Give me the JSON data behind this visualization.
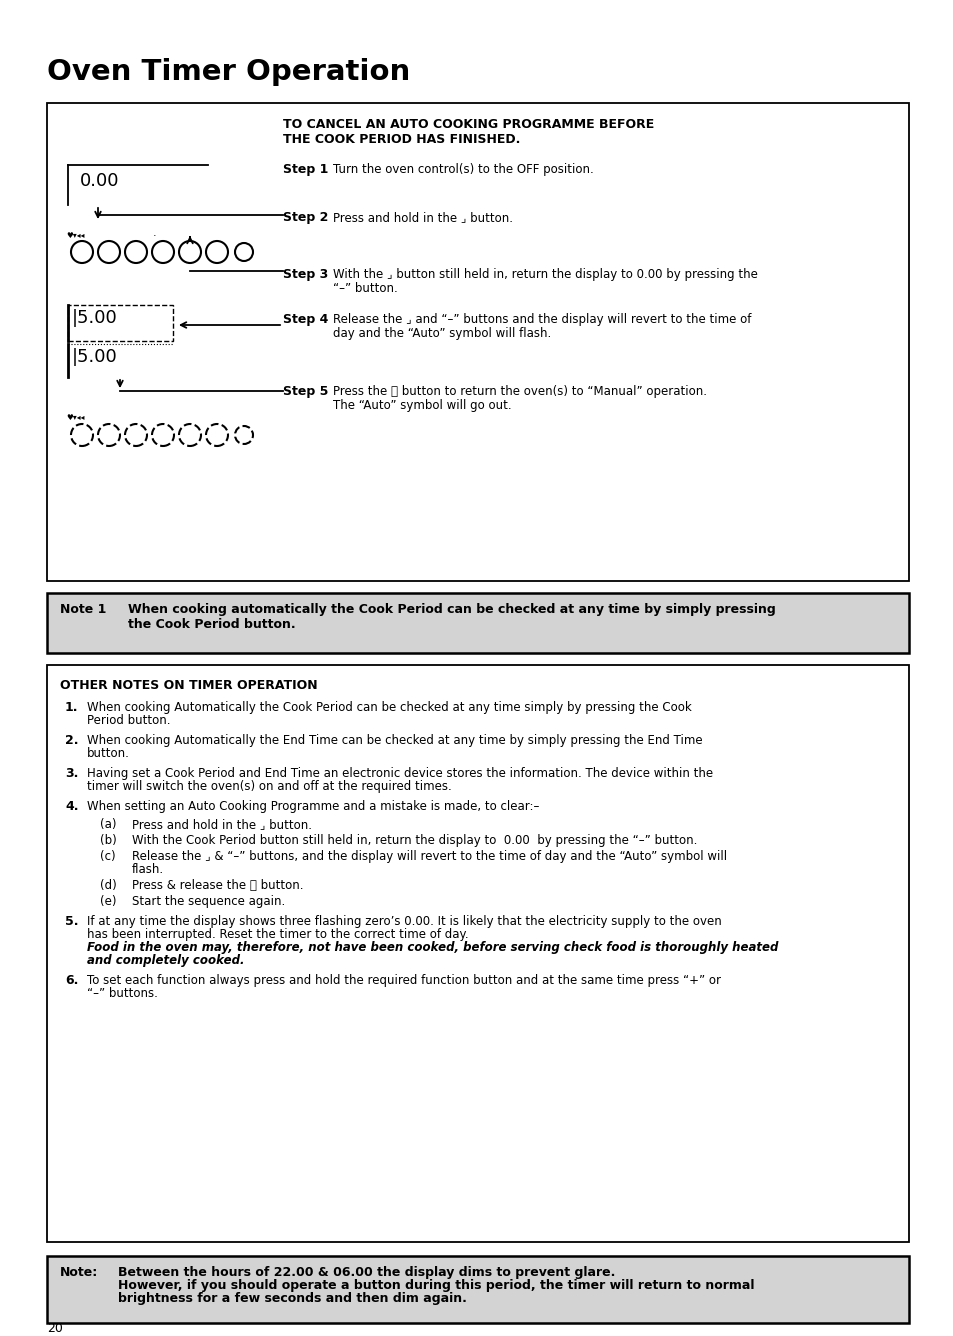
{
  "title": "Oven Timer Operation",
  "page_number": "20",
  "bg": "#ffffff",
  "note1_bg": "#d3d3d3",
  "box1_header": "TO CANCEL AN AUTO COOKING PROGRAMME BEFORE\nTHE COOK PERIOD HAS FINISHED.",
  "step1_text": "Turn the oven control(s) to the OFF position.",
  "step2_text": "Press and hold in the ⌟ button.",
  "step3_line1": "With the ⌟ button still held in, return the display to 0.00 by pressing the",
  "step3_line2": "“–” button.",
  "step4_line1": "Release the ⌟ and “–” buttons and the display will revert to the time of",
  "step4_line2": "day and the “Auto” symbol will flash.",
  "step5_line1": "Press the ⌖ button to return the oven(s) to “Manual” operation.",
  "step5_line2": "The “Auto” symbol will go out.",
  "note1_bold": "Note 1",
  "note1_line1": "When cooking automatically the Cook Period can be checked at any time by simply pressing",
  "note1_line2": "the Cook Period button.",
  "box2_header": "OTHER NOTES ON TIMER OPERATION",
  "item1_line1": "When cooking Automatically the Cook Period can be checked at any time simply by pressing the Cook",
  "item1_line2": "Period button.",
  "item2_line1": "When cooking Automatically the End Time can be checked at any time by simply pressing the End Time",
  "item2_line2": "button.",
  "item3_line1": "Having set a Cook Period and End Time an electronic device stores the information. The device within the",
  "item3_line2": "timer will switch the oven(s) on and off at the required times.",
  "item4_line1": "When setting an Auto Cooking Programme and a mistake is made, to clear:–",
  "suba_text": "Press and hold in the ⌟ button.",
  "subb_line1": "With the Cook Period button still held in, return the display to  0.00  by pressing the “–” button.",
  "subc_line1": "Release the ⌟ & “–” buttons, and the display will revert to the time of day and the “Auto” symbol will",
  "subc_line2": "flash.",
  "subd_text": "Press & release the ⌖ button.",
  "sube_text": "Start the sequence again.",
  "item5_line1": "If at any time the display shows three flashing zero’s 0.00. It is likely that the electricity supply to the oven",
  "item5_line2": "has been interrupted. Reset the timer to the correct time of day.",
  "item5_italic1": "Food in the oven may, therefore, not have been cooked, before serving check food is thoroughly heated",
  "item5_italic2": "and completely cooked.",
  "item6_line1": "To set each function always press and hold the required function button and at the same time press “+” or",
  "item6_line2": "“–” buttons.",
  "note2_line1": "Between the hours of 22.00 & 06.00 the display dims to prevent glare.",
  "note2_line2": "However, if you should operate a button during this period, the timer will return to normal",
  "note2_line3": "brightness for a few seconds and then dim again."
}
